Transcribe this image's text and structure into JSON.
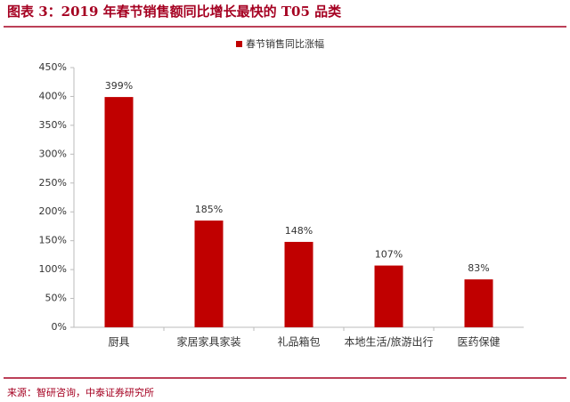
{
  "chart_data": {
    "type": "bar",
    "title": "图表 3：2019 年春节销售额同比增长最快的 T05 品类",
    "source": "来源：智研咨询，中泰证券研究所",
    "categories": [
      "厨具",
      "家居家具家装",
      "礼品箱包",
      "本地生活/旅游出行",
      "医药保健"
    ],
    "series": [
      {
        "name": "春节销售同比涨幅",
        "color": "#c00000",
        "values": [
          399,
          185,
          148,
          107,
          83
        ],
        "value_labels": [
          "399%",
          "185%",
          "148%",
          "107%",
          "83%"
        ]
      }
    ],
    "ylim": [
      0,
      450
    ],
    "yticks": [
      {
        "value": 0,
        "label": "0%"
      },
      {
        "value": 50,
        "label": "50%"
      },
      {
        "value": 100,
        "label": "100%"
      },
      {
        "value": 150,
        "label": "150%"
      },
      {
        "value": 200,
        "label": "200%"
      },
      {
        "value": 250,
        "label": "250%"
      },
      {
        "value": 300,
        "label": "300%"
      },
      {
        "value": 350,
        "label": "350%"
      },
      {
        "value": 400,
        "label": "400%"
      },
      {
        "value": 450,
        "label": "450%"
      }
    ],
    "grid": false,
    "legend": "top"
  }
}
